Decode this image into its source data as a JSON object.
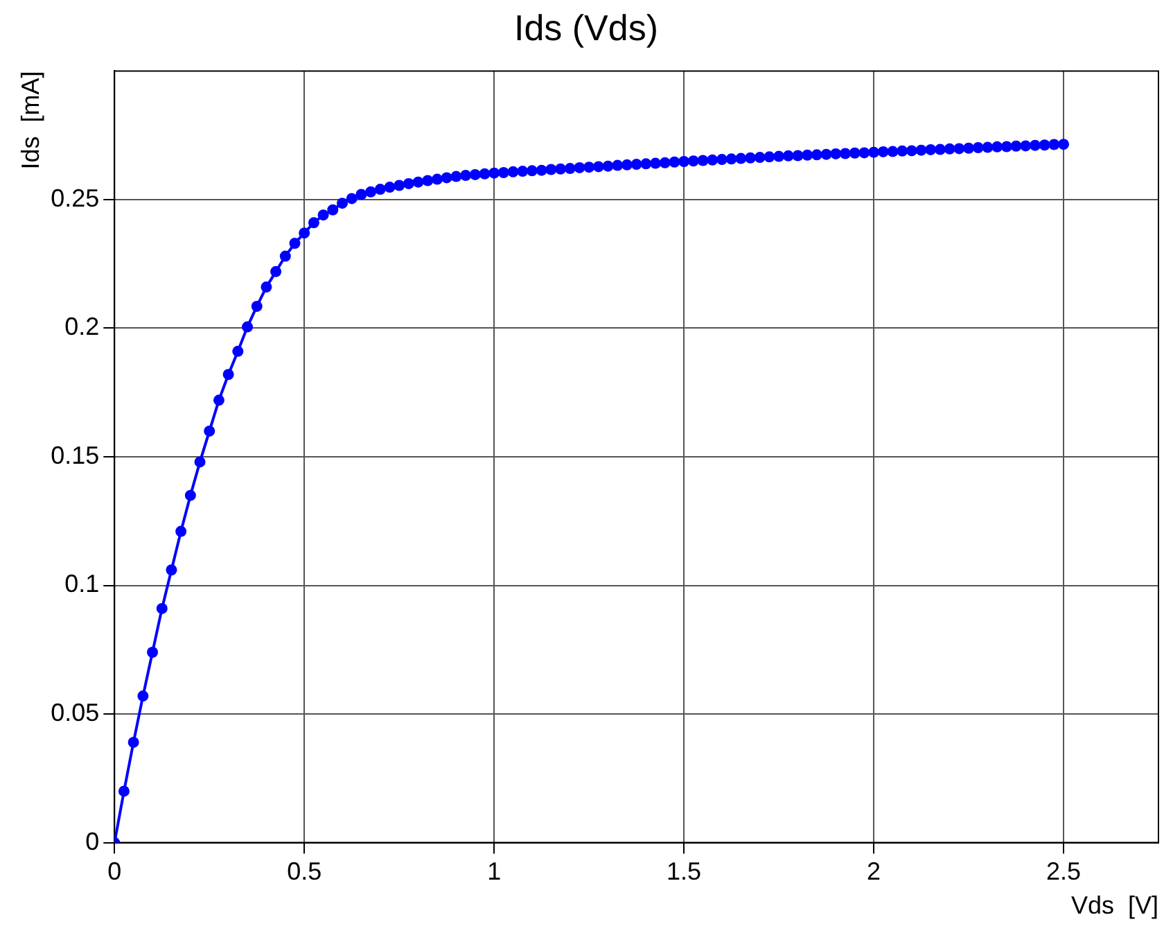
{
  "chart_data": {
    "type": "line",
    "title": "Ids (Vds)",
    "xlabel": "Vds  [V]",
    "ylabel": "Ids  [mA]",
    "xlim": [
      0,
      2.75
    ],
    "xticks": [
      0,
      0.5,
      1,
      1.5,
      2,
      2.5
    ],
    "ylim": [
      0,
      0.3
    ],
    "yticks": [
      0,
      0.05,
      0.1,
      0.15,
      0.2,
      0.25
    ],
    "grid": true,
    "legend": false,
    "marker": "circle",
    "line_style": "solid",
    "x": [
      0,
      0.025,
      0.05,
      0.075,
      0.1,
      0.125,
      0.15,
      0.175,
      0.2,
      0.225,
      0.25,
      0.275,
      0.3,
      0.325,
      0.35,
      0.375,
      0.4,
      0.425,
      0.45,
      0.475,
      0.5,
      0.525,
      0.55,
      0.575,
      0.6,
      0.625,
      0.65,
      0.675,
      0.7,
      0.725,
      0.75,
      0.775,
      0.8,
      0.825,
      0.85,
      0.875,
      0.9,
      0.925,
      0.95,
      0.975,
      1,
      1.025,
      1.05,
      1.075,
      1.1,
      1.125,
      1.15,
      1.175,
      1.2,
      1.225,
      1.25,
      1.275,
      1.3,
      1.325,
      1.35,
      1.375,
      1.4,
      1.425,
      1.45,
      1.475,
      1.5,
      1.525,
      1.55,
      1.575,
      1.6,
      1.625,
      1.65,
      1.675,
      1.7,
      1.725,
      1.75,
      1.775,
      1.8,
      1.825,
      1.85,
      1.875,
      1.9,
      1.925,
      1.95,
      1.975,
      2,
      2.025,
      2.05,
      2.075,
      2.1,
      2.125,
      2.15,
      2.175,
      2.2,
      2.225,
      2.25,
      2.275,
      2.3,
      2.325,
      2.35,
      2.375,
      2.4,
      2.425,
      2.45,
      2.475,
      2.5
    ],
    "series": [
      {
        "color": "#0000ff",
        "values": [
          0,
          0.02,
          0.039,
          0.057,
          0.074,
          0.091,
          0.106,
          0.121,
          0.135,
          0.148,
          0.16,
          0.172,
          0.182,
          0.191,
          0.2005,
          0.2085,
          0.216,
          0.222,
          0.228,
          0.233,
          0.237,
          0.241,
          0.244,
          0.246,
          0.2486,
          0.2504,
          0.252,
          0.253,
          0.254,
          0.2548,
          0.2555,
          0.2562,
          0.2568,
          0.2574,
          0.2579,
          0.2585,
          0.259,
          0.2594,
          0.2597,
          0.26,
          0.2603,
          0.2605,
          0.2608,
          0.261,
          0.2612,
          0.2614,
          0.2617,
          0.2619,
          0.2621,
          0.2624,
          0.2626,
          0.2628,
          0.263,
          0.2633,
          0.2635,
          0.2637,
          0.2639,
          0.2641,
          0.2643,
          0.2646,
          0.2648,
          0.265,
          0.2652,
          0.2654,
          0.2656,
          0.2658,
          0.266,
          0.2662,
          0.2664,
          0.2666,
          0.2668,
          0.267,
          0.2671,
          0.2673,
          0.2674,
          0.2676,
          0.2678,
          0.2679,
          0.2681,
          0.2682,
          0.2684,
          0.2686,
          0.2687,
          0.2689,
          0.269,
          0.2692,
          0.2694,
          0.2695,
          0.2697,
          0.2698,
          0.27,
          0.2702,
          0.2703,
          0.2705,
          0.2706,
          0.2708,
          0.2709,
          0.2711,
          0.2712,
          0.2714,
          0.2715
        ]
      }
    ]
  }
}
